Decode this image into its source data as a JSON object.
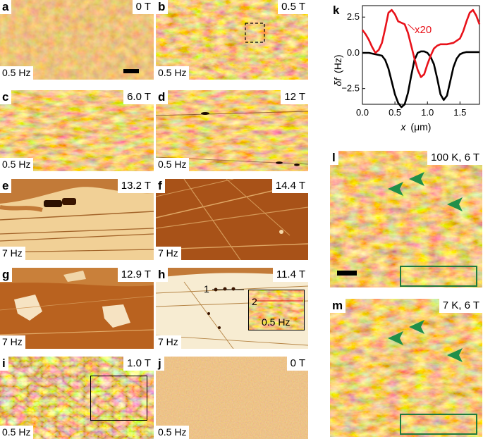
{
  "panels": {
    "a": {
      "letter": "a",
      "field": "0 T",
      "scale": "0.5 Hz"
    },
    "b": {
      "letter": "b",
      "field": "0.5 T",
      "scale": "0.5 Hz"
    },
    "c": {
      "letter": "c",
      "field": "6.0 T",
      "scale": "0.5 Hz"
    },
    "d": {
      "letter": "d",
      "field": "12 T",
      "scale": "0.5 Hz"
    },
    "e": {
      "letter": "e",
      "field": "13.2 T",
      "scale": "7 Hz"
    },
    "f": {
      "letter": "f",
      "field": "14.4 T",
      "scale": "7 Hz"
    },
    "g": {
      "letter": "g",
      "field": "12.9 T",
      "scale": "7 Hz"
    },
    "h": {
      "letter": "h",
      "field": "11.4 T",
      "scale": "7 Hz",
      "marker1": "1",
      "marker2": "2",
      "inset_scale": "0.5 Hz"
    },
    "i": {
      "letter": "i",
      "field": "1.0 T",
      "scale": "0.5 Hz"
    },
    "j": {
      "letter": "j",
      "field": "0 T",
      "scale": "0.5 Hz"
    },
    "l": {
      "letter": "l",
      "field": "100 K, 6 T"
    },
    "m": {
      "letter": "m",
      "field": "7 K, 6 T"
    }
  },
  "chart_data": {
    "type": "line",
    "panel_label": "k",
    "xlabel_main": "x",
    "xlabel_unit": "(μm)",
    "ylabel_main": "δf",
    "ylabel_unit": "(Hz)",
    "xlim": [
      0,
      1.8
    ],
    "ylim": [
      -3.6,
      3.3
    ],
    "x_ticks": [
      "0.0",
      "0.5",
      "1.0",
      "1.5"
    ],
    "x_tick_values": [
      0,
      0.5,
      1.0,
      1.5
    ],
    "y_ticks": [
      "2.5",
      "0.0",
      "−2.5"
    ],
    "y_tick_values": [
      2.5,
      0,
      -2.5
    ],
    "annotation": "x20",
    "colors": {
      "black": "#000000",
      "red": "#e8121a"
    },
    "series": [
      {
        "color": "black",
        "x": [
          0,
          0.1,
          0.2,
          0.3,
          0.35,
          0.4,
          0.45,
          0.5,
          0.55,
          0.6,
          0.65,
          0.7,
          0.75,
          0.8,
          0.85,
          0.9,
          0.95,
          1.0,
          1.05,
          1.1,
          1.15,
          1.2,
          1.25,
          1.3,
          1.35,
          1.4,
          1.45,
          1.5,
          1.55,
          1.6,
          1.7,
          1.8
        ],
        "values": [
          0,
          0,
          -0.1,
          -0.2,
          -0.5,
          -1.1,
          -2.0,
          -2.9,
          -3.5,
          -3.8,
          -3.6,
          -2.8,
          -1.6,
          -0.5,
          0.0,
          0.1,
          0.1,
          0.0,
          -0.3,
          -0.8,
          -1.8,
          -2.9,
          -3.3,
          -3.0,
          -2.0,
          -1.0,
          -0.4,
          -0.1,
          0.0,
          0.05,
          0.05,
          0.05
        ]
      },
      {
        "color": "red",
        "x": [
          0,
          0.05,
          0.1,
          0.15,
          0.2,
          0.25,
          0.3,
          0.35,
          0.4,
          0.45,
          0.5,
          0.55,
          0.6,
          0.65,
          0.7,
          0.75,
          0.8,
          0.85,
          0.9,
          0.95,
          1.0,
          1.05,
          1.1,
          1.15,
          1.2,
          1.3,
          1.4,
          1.5,
          1.55,
          1.6,
          1.65,
          1.7,
          1.75,
          1.8
        ],
        "values": [
          1.6,
          1.3,
          0.9,
          0.4,
          0.0,
          0.2,
          0.7,
          1.7,
          2.8,
          3.0,
          2.7,
          2.2,
          2.1,
          2.0,
          1.4,
          0.5,
          -0.4,
          -1.2,
          -1.7,
          -1.5,
          -0.8,
          -0.2,
          0.3,
          0.5,
          0.6,
          0.6,
          0.7,
          1.0,
          1.5,
          2.2,
          2.8,
          3.0,
          2.6,
          2.0
        ]
      }
    ]
  }
}
